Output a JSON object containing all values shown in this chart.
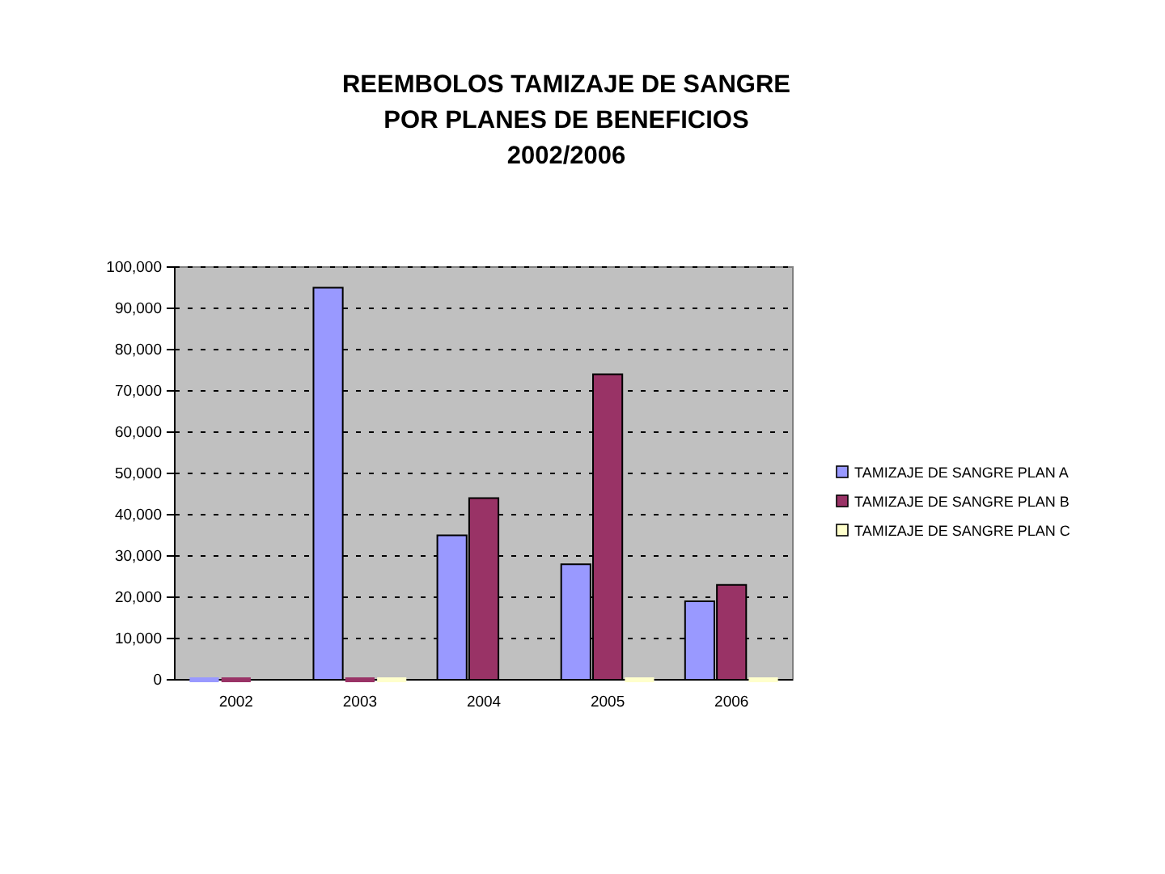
{
  "chart_data": {
    "type": "bar",
    "title": "REEMBOLOS TAMIZAJE DE SANGRE POR PLANES DE BENEFICIOS",
    "subtitle": "2002/2006",
    "categories": [
      "2002",
      "2003",
      "2004",
      "2005",
      "2006"
    ],
    "series": [
      {
        "name": "TAMIZAJE DE SANGRE PLAN A",
        "color": "#9999ff",
        "values": [
          0,
          95000,
          35000,
          28000,
          19000
        ]
      },
      {
        "name": "TAMIZAJE DE SANGRE PLAN B",
        "color": "#993366",
        "values": [
          0,
          0,
          44000,
          74000,
          23000
        ]
      },
      {
        "name": "TAMIZAJE DE SANGRE PLAN C",
        "color": "#ffffcc",
        "values": [
          null,
          0,
          null,
          0,
          0
        ]
      }
    ],
    "ylim": [
      0,
      100000
    ],
    "yticks": [
      0,
      {
        "value": 10000,
        "label": "10,000"
      },
      {
        "value": 20000,
        "label": "20,000"
      },
      {
        "value": 30000,
        "label": "30,000"
      },
      {
        "value": 40000,
        "label": "40,000"
      },
      {
        "value": 50000,
        "label": "50,000"
      },
      {
        "value": 60000,
        "label": "60,000"
      },
      {
        "value": 70000,
        "label": "70,000"
      },
      {
        "value": 80000,
        "label": "80,000"
      },
      {
        "value": 90000,
        "label": "90,000"
      },
      {
        "value": 100000,
        "label": "100,000"
      }
    ],
    "grid": "y",
    "legend": "right"
  }
}
